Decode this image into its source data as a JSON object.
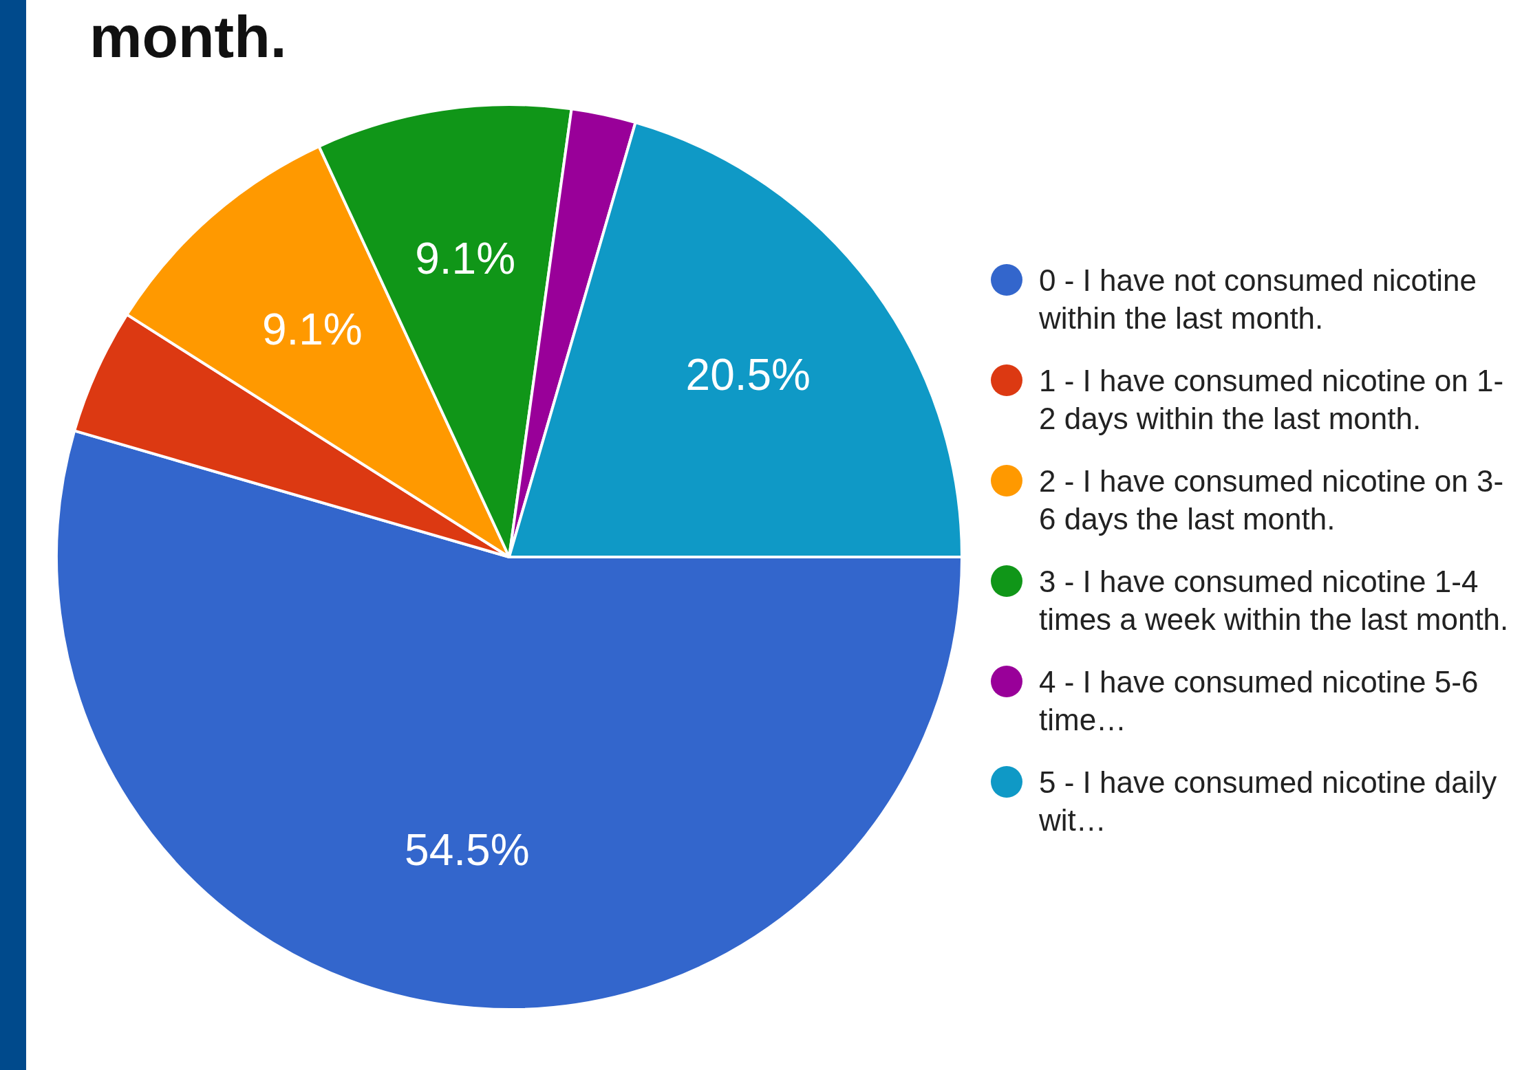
{
  "chart_data": {
    "type": "pie",
    "title": "month.",
    "categories": [
      "0 - I have not consumed nicotine within the last month.",
      "1 - I have consumed nicotine on 1-2 days within the last month.",
      "2 - I have consumed nicotine on 3-6 days the last month.",
      "3 - I have consumed nicotine 1-4 times a week within the last month.",
      "4 - I have consumed nicotine 5-6 time…",
      "5 - I have consumed nicotine daily wit…"
    ],
    "values": [
      54.5,
      4.5,
      9.1,
      9.1,
      2.3,
      20.5
    ],
    "colors": [
      "#3366cc",
      "#dc3912",
      "#ff9900",
      "#109618",
      "#990099",
      "#0f99c6"
    ],
    "value_labels": [
      "54.5%",
      null,
      "9.1%",
      "9.1%",
      null,
      "20.5%"
    ],
    "legend": "right"
  }
}
